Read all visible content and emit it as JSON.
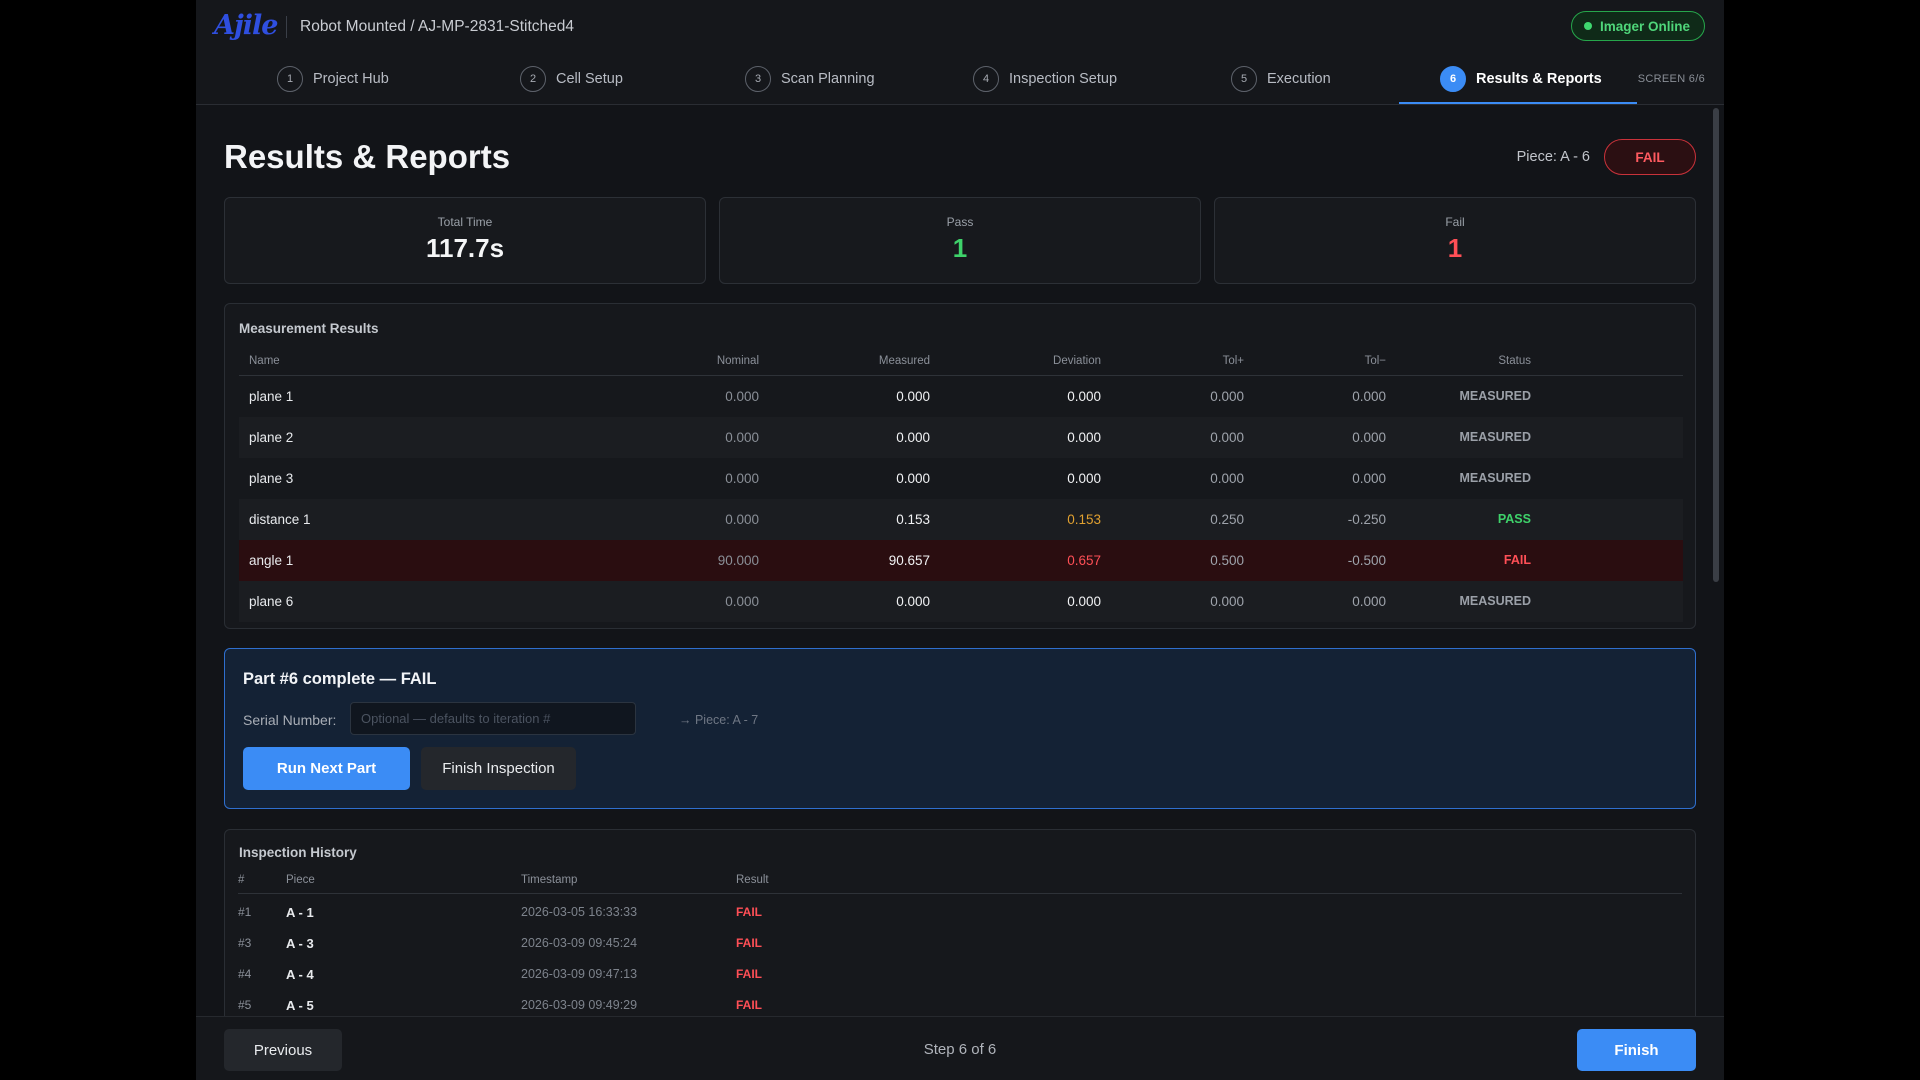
{
  "app": {
    "logo": "Ajile",
    "breadcrumb": "Robot Mounted / AJ-MP-2831-Stitched4",
    "status": "Imager Online",
    "colors": {
      "accent": "#3b8cf5",
      "pass": "#3ed26a",
      "fail": "#ff4f56",
      "warn": "#e0a030"
    }
  },
  "stepper": {
    "steps": [
      {
        "num": "1",
        "label": "Project Hub"
      },
      {
        "num": "2",
        "label": "Cell Setup"
      },
      {
        "num": "3",
        "label": "Scan Planning"
      },
      {
        "num": "4",
        "label": "Inspection Setup"
      },
      {
        "num": "5",
        "label": "Execution"
      },
      {
        "num": "6",
        "label": "Results & Reports"
      }
    ],
    "active": 6,
    "screen_indicator": "SCREEN 6/6"
  },
  "header": {
    "title": "Results & Reports",
    "piece": "Piece: A - 6",
    "result": "FAIL"
  },
  "stats": {
    "total_time_label": "Total Time",
    "total_time": "117.7s",
    "pass_label": "Pass",
    "pass": "1",
    "fail_label": "Fail",
    "fail": "1"
  },
  "measurements": {
    "title": "Measurement Results",
    "columns": {
      "name": "Name",
      "nominal": "Nominal",
      "measured": "Measured",
      "deviation": "Deviation",
      "tol_plus": "Tol+",
      "tol_minus": "Tol−",
      "status": "Status"
    },
    "rows": [
      {
        "name": "plane 1",
        "nominal": "0.000",
        "measured": "0.000",
        "deviation": "0.000",
        "tol_plus": "0.000",
        "tol_minus": "0.000",
        "status": "MEASURED"
      },
      {
        "name": "plane 2",
        "nominal": "0.000",
        "measured": "0.000",
        "deviation": "0.000",
        "tol_plus": "0.000",
        "tol_minus": "0.000",
        "status": "MEASURED"
      },
      {
        "name": "plane 3",
        "nominal": "0.000",
        "measured": "0.000",
        "deviation": "0.000",
        "tol_plus": "0.000",
        "tol_minus": "0.000",
        "status": "MEASURED"
      },
      {
        "name": "distance 1",
        "nominal": "0.000",
        "measured": "0.153",
        "deviation": "0.153",
        "tol_plus": "0.250",
        "tol_minus": "-0.250",
        "status": "PASS"
      },
      {
        "name": "angle 1",
        "nominal": "90.000",
        "measured": "90.657",
        "deviation": "0.657",
        "tol_plus": "0.500",
        "tol_minus": "-0.500",
        "status": "FAIL"
      },
      {
        "name": "plane 6",
        "nominal": "0.000",
        "measured": "0.000",
        "deviation": "0.000",
        "tol_plus": "0.000",
        "tol_minus": "0.000",
        "status": "MEASURED"
      }
    ]
  },
  "completion": {
    "title": "Part #6 complete — FAIL",
    "serial_label": "Serial Number:",
    "serial_placeholder": "Optional — defaults to iteration #",
    "serial_value": "",
    "next_piece": "→ Piece: A - 7",
    "run_next_label": "Run Next Part",
    "finish_inspection_label": "Finish Inspection"
  },
  "history": {
    "title": "Inspection History",
    "columns": {
      "num": "#",
      "piece": "Piece",
      "timestamp": "Timestamp",
      "result": "Result"
    },
    "rows": [
      {
        "num": "#1",
        "piece": "A - 1",
        "timestamp": "2026-03-05 16:33:33",
        "result": "FAIL"
      },
      {
        "num": "#3",
        "piece": "A - 3",
        "timestamp": "2026-03-09 09:45:24",
        "result": "FAIL"
      },
      {
        "num": "#4",
        "piece": "A - 4",
        "timestamp": "2026-03-09 09:47:13",
        "result": "FAIL"
      },
      {
        "num": "#5",
        "piece": "A - 5",
        "timestamp": "2026-03-09 09:49:29",
        "result": "FAIL"
      }
    ]
  },
  "footer": {
    "previous_label": "Previous",
    "step_text": "Step 6 of 6",
    "finish_label": "Finish"
  }
}
